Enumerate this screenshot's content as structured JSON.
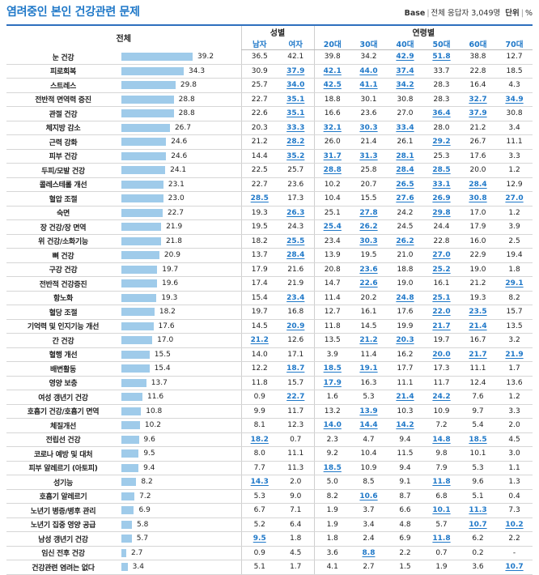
{
  "title": "염려중인 본인 건강관련 문제",
  "meta": {
    "base_label": "Base",
    "base_desc": "전체 응답자 3,049명",
    "unit_label": "단위",
    "unit": "%"
  },
  "header": {
    "total": "전체",
    "gender_group": "성별",
    "age_group": "연령별",
    "cols": [
      "남자",
      "여자",
      "20대",
      "30대",
      "40대",
      "50대",
      "60대",
      "70대"
    ]
  },
  "rows": [
    {
      "label": "눈 건강",
      "total": "39.2",
      "v": [
        "36.5",
        "42.1",
        "39.8",
        "34.2",
        "42.9",
        "51.8",
        "38.8",
        "12.7"
      ],
      "hl": [
        4,
        5
      ]
    },
    {
      "label": "피로회복",
      "total": "34.3",
      "v": [
        "30.9",
        "37.9",
        "42.1",
        "44.0",
        "37.4",
        "33.7",
        "22.8",
        "18.5"
      ],
      "hl": [
        1,
        2,
        3,
        4
      ]
    },
    {
      "label": "스트레스",
      "total": "29.8",
      "v": [
        "25.7",
        "34.0",
        "42.5",
        "41.1",
        "34.2",
        "28.3",
        "16.4",
        "4.3"
      ],
      "hl": [
        1,
        2,
        3,
        4
      ]
    },
    {
      "label": "전반적 면역력 증진",
      "total": "28.8",
      "v": [
        "22.7",
        "35.1",
        "18.8",
        "30.1",
        "30.8",
        "28.3",
        "32.7",
        "34.9"
      ],
      "hl": [
        1,
        6,
        7
      ]
    },
    {
      "label": "관절 건강",
      "total": "28.8",
      "v": [
        "22.6",
        "35.1",
        "16.6",
        "23.6",
        "27.0",
        "36.4",
        "37.9",
        "30.8"
      ],
      "hl": [
        1,
        5,
        6
      ]
    },
    {
      "label": "체지방 감소",
      "total": "26.7",
      "v": [
        "20.3",
        "33.3",
        "32.1",
        "30.3",
        "33.4",
        "28.0",
        "21.2",
        "3.4"
      ],
      "hl": [
        1,
        2,
        3,
        4
      ]
    },
    {
      "label": "근력 강화",
      "total": "24.6",
      "v": [
        "21.2",
        "28.2",
        "26.0",
        "21.4",
        "26.1",
        "29.2",
        "26.7",
        "11.1"
      ],
      "hl": [
        1,
        5
      ]
    },
    {
      "label": "피부 건강",
      "total": "24.6",
      "v": [
        "14.4",
        "35.2",
        "31.7",
        "31.3",
        "28.1",
        "25.3",
        "17.6",
        "3.3"
      ],
      "hl": [
        1,
        2,
        3,
        4
      ]
    },
    {
      "label": "두피/모발 건강",
      "total": "24.1",
      "v": [
        "22.5",
        "25.7",
        "28.8",
        "25.8",
        "28.4",
        "28.5",
        "20.0",
        "1.2"
      ],
      "hl": [
        2,
        4,
        5
      ]
    },
    {
      "label": "콜레스테롤 개선",
      "total": "23.1",
      "v": [
        "22.7",
        "23.6",
        "10.2",
        "20.7",
        "26.5",
        "33.1",
        "28.4",
        "12.9"
      ],
      "hl": [
        4,
        5,
        6
      ]
    },
    {
      "label": "혈압 조절",
      "total": "23.0",
      "v": [
        "28.5",
        "17.3",
        "10.4",
        "15.5",
        "27.6",
        "26.9",
        "30.8",
        "27.0"
      ],
      "hl": [
        0,
        4,
        5,
        6,
        7
      ]
    },
    {
      "label": "숙면",
      "total": "22.7",
      "v": [
        "19.3",
        "26.3",
        "25.1",
        "27.8",
        "24.2",
        "29.8",
        "17.0",
        "1.2"
      ],
      "hl": [
        1,
        3,
        5
      ]
    },
    {
      "label": "장 건강/장 면역",
      "total": "21.9",
      "v": [
        "19.5",
        "24.3",
        "25.4",
        "26.2",
        "24.5",
        "24.4",
        "17.9",
        "3.9"
      ],
      "hl": [
        2,
        3
      ]
    },
    {
      "label": "위 건강/소화기능",
      "total": "21.8",
      "v": [
        "18.2",
        "25.5",
        "23.4",
        "30.3",
        "26.2",
        "22.8",
        "16.0",
        "2.5"
      ],
      "hl": [
        1,
        3,
        4
      ]
    },
    {
      "label": "뼈 건강",
      "total": "20.9",
      "v": [
        "13.7",
        "28.4",
        "13.9",
        "19.5",
        "21.0",
        "27.0",
        "22.9",
        "19.4"
      ],
      "hl": [
        1,
        5
      ]
    },
    {
      "label": "구강 건강",
      "total": "19.7",
      "v": [
        "17.9",
        "21.6",
        "20.8",
        "23.6",
        "18.8",
        "25.2",
        "19.0",
        "1.8"
      ],
      "hl": [
        3,
        5
      ]
    },
    {
      "label": "전반적 건강증진",
      "total": "19.6",
      "v": [
        "17.4",
        "21.9",
        "14.7",
        "22.6",
        "19.0",
        "16.1",
        "21.2",
        "29.1"
      ],
      "hl": [
        3,
        7
      ]
    },
    {
      "label": "항노화",
      "total": "19.3",
      "v": [
        "15.4",
        "23.4",
        "11.4",
        "20.2",
        "24.8",
        "25.1",
        "19.3",
        "8.2"
      ],
      "hl": [
        1,
        4,
        5
      ]
    },
    {
      "label": "혈당 조절",
      "total": "18.2",
      "v": [
        "19.7",
        "16.8",
        "12.7",
        "16.1",
        "17.6",
        "22.0",
        "23.5",
        "15.7"
      ],
      "hl": [
        5,
        6
      ]
    },
    {
      "label": "기억력 및 인지기능 개선",
      "total": "17.6",
      "v": [
        "14.5",
        "20.9",
        "11.8",
        "14.5",
        "19.9",
        "21.7",
        "21.4",
        "13.5"
      ],
      "hl": [
        1,
        5,
        6
      ]
    },
    {
      "label": "간 건강",
      "total": "17.0",
      "v": [
        "21.2",
        "12.6",
        "13.5",
        "21.2",
        "20.3",
        "19.7",
        "16.7",
        "3.2"
      ],
      "hl": [
        0,
        3,
        4
      ]
    },
    {
      "label": "혈행 개선",
      "total": "15.5",
      "v": [
        "14.0",
        "17.1",
        "3.9",
        "11.4",
        "16.2",
        "20.0",
        "21.7",
        "21.9"
      ],
      "hl": [
        5,
        6,
        7
      ]
    },
    {
      "label": "배변활동",
      "total": "15.4",
      "v": [
        "12.2",
        "18.7",
        "18.5",
        "19.1",
        "17.7",
        "17.3",
        "11.1",
        "1.7"
      ],
      "hl": [
        1,
        2,
        3
      ]
    },
    {
      "label": "영양 보충",
      "total": "13.7",
      "v": [
        "11.8",
        "15.7",
        "17.9",
        "16.3",
        "11.1",
        "11.7",
        "12.4",
        "13.6"
      ],
      "hl": [
        2
      ]
    },
    {
      "label": "여성 갱년기 건강",
      "total": "11.6",
      "v": [
        "0.9",
        "22.7",
        "1.6",
        "5.3",
        "21.4",
        "24.2",
        "7.6",
        "1.2"
      ],
      "hl": [
        1,
        4,
        5
      ]
    },
    {
      "label": "호흡기 건강/호흡기 면역",
      "total": "10.8",
      "v": [
        "9.9",
        "11.7",
        "13.2",
        "13.9",
        "10.3",
        "10.9",
        "9.7",
        "3.3"
      ],
      "hl": [
        3
      ]
    },
    {
      "label": "체질개선",
      "total": "10.2",
      "v": [
        "8.1",
        "12.3",
        "14.0",
        "14.4",
        "14.2",
        "7.2",
        "5.4",
        "2.0"
      ],
      "hl": [
        2,
        3,
        4
      ]
    },
    {
      "label": "전립선 건강",
      "total": "9.6",
      "v": [
        "18.2",
        "0.7",
        "2.3",
        "4.7",
        "9.4",
        "14.8",
        "18.5",
        "4.5"
      ],
      "hl": [
        0,
        5,
        6
      ]
    },
    {
      "label": "코로나 예방 및 대처",
      "total": "9.5",
      "v": [
        "8.0",
        "11.1",
        "9.2",
        "10.4",
        "11.5",
        "9.8",
        "10.1",
        "3.0"
      ],
      "hl": []
    },
    {
      "label": "피부 알레르기 (아토피)",
      "total": "9.4",
      "v": [
        "7.7",
        "11.3",
        "18.5",
        "10.9",
        "9.4",
        "7.9",
        "5.3",
        "1.1"
      ],
      "hl": [
        2
      ]
    },
    {
      "label": "성기능",
      "total": "8.2",
      "v": [
        "14.3",
        "2.0",
        "5.0",
        "8.5",
        "9.1",
        "11.8",
        "9.6",
        "1.3"
      ],
      "hl": [
        0,
        5
      ]
    },
    {
      "label": "호흡기 알레르기",
      "total": "7.2",
      "v": [
        "5.3",
        "9.0",
        "8.2",
        "10.6",
        "8.7",
        "6.8",
        "5.1",
        "0.4"
      ],
      "hl": [
        3
      ]
    },
    {
      "label": "노년기 병증/병후 관리",
      "total": "6.9",
      "v": [
        "6.7",
        "7.1",
        "1.9",
        "3.7",
        "6.6",
        "10.1",
        "11.3",
        "7.3"
      ],
      "hl": [
        5,
        6
      ]
    },
    {
      "label": "노년기 집중 영양 공급",
      "total": "5.8",
      "v": [
        "5.2",
        "6.4",
        "1.9",
        "3.4",
        "4.8",
        "5.7",
        "10.7",
        "10.2"
      ],
      "hl": [
        6,
        7
      ]
    },
    {
      "label": "남성 갱년기 건강",
      "total": "5.7",
      "v": [
        "9.5",
        "1.8",
        "1.8",
        "2.4",
        "6.9",
        "11.8",
        "6.2",
        "2.2"
      ],
      "hl": [
        0,
        5
      ]
    },
    {
      "label": "임신 전후 건강",
      "total": "2.7",
      "v": [
        "0.9",
        "4.5",
        "3.6",
        "8.8",
        "2.2",
        "0.7",
        "0.2",
        "-"
      ],
      "hl": [
        3
      ]
    },
    {
      "label": "건강관련 염려는 없다",
      "total": "3.4",
      "v": [
        "5.1",
        "1.7",
        "4.1",
        "2.7",
        "1.5",
        "1.9",
        "3.6",
        "10.7"
      ],
      "hl": [
        7
      ]
    }
  ]
}
